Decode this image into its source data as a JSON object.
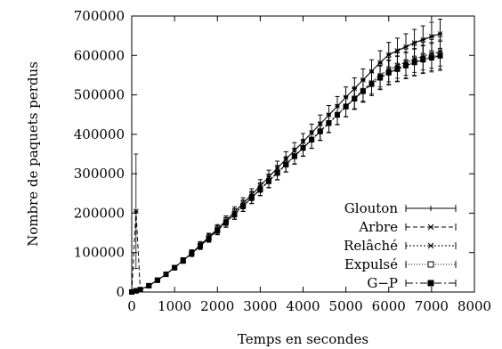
{
  "chart_data": {
    "type": "line",
    "xlabel": "Temps en secondes",
    "ylabel": "Nombre de paquets perdus",
    "xlim": [
      0,
      8000
    ],
    "ylim": [
      0,
      700000
    ],
    "xticks": [
      0,
      1000,
      2000,
      3000,
      4000,
      5000,
      6000,
      7000,
      8000
    ],
    "yticks": [
      0,
      100000,
      200000,
      300000,
      400000,
      500000,
      600000,
      700000
    ],
    "xtick_labels": [
      "0",
      "1000",
      "2000",
      "3000",
      "4000",
      "5000",
      "6000",
      "7000",
      "8000"
    ],
    "ytick_labels": [
      "0",
      "100000",
      "200000",
      "300000",
      "400000",
      "500000",
      "600000",
      "700000"
    ],
    "grid": false,
    "legend_position": "bottom-right",
    "series": [
      {
        "name": "Glouton",
        "marker": "plus",
        "dash": "none",
        "x": [
          0,
          100,
          200,
          400,
          600,
          800,
          1000,
          1200,
          1400,
          1600,
          1800,
          2000,
          2200,
          2400,
          2600,
          2800,
          3000,
          3200,
          3400,
          3600,
          3800,
          4000,
          4200,
          4400,
          4600,
          4800,
          5000,
          5200,
          5400,
          5600,
          5800,
          6000,
          6200,
          6400,
          6600,
          6800,
          7000,
          7200
        ],
        "y": [
          0,
          3000,
          6000,
          16000,
          30000,
          45000,
          62000,
          80000,
          99000,
          119000,
          139000,
          160000,
          181000,
          203000,
          225000,
          247000,
          269000,
          292000,
          314000,
          337000,
          359000,
          381000,
          404000,
          426000,
          449000,
          471000,
          494000,
          516000,
          538000,
          560000,
          582000,
          602000,
          612000,
          622000,
          632000,
          640000,
          648000,
          655000
        ],
        "err": [
          0,
          1000,
          2000,
          3000,
          4000,
          5000,
          6000,
          7000,
          8000,
          9000,
          10000,
          11000,
          12000,
          13000,
          14000,
          15000,
          16000,
          17000,
          18000,
          19000,
          20000,
          21000,
          22000,
          23000,
          24000,
          25000,
          26000,
          27000,
          28000,
          29000,
          30000,
          31000,
          32000,
          33000,
          34000,
          35000,
          36000,
          37000
        ]
      },
      {
        "name": "Arbre",
        "marker": "star",
        "dash": "5,3",
        "x": [
          0,
          100,
          200,
          400,
          600,
          800,
          1000,
          1200,
          1400,
          1600,
          1800,
          2000,
          2200,
          2400,
          2600,
          2800,
          3000,
          3200,
          3400,
          3600,
          3800,
          4000,
          4200,
          4400,
          4600,
          4800,
          5000,
          5200,
          5400,
          5600,
          5800,
          6000,
          6200,
          6400,
          6600,
          6800,
          7000,
          7200
        ],
        "y": [
          0,
          205000,
          6000,
          16000,
          30000,
          45000,
          62000,
          80000,
          99000,
          119000,
          139000,
          160000,
          181000,
          203000,
          225000,
          247000,
          269000,
          292000,
          314000,
          337000,
          359000,
          381000,
          404000,
          426000,
          449000,
          471000,
          494000,
          516000,
          538000,
          560000,
          582000,
          602000,
          612000,
          622000,
          632000,
          640000,
          648000,
          655000
        ],
        "err": [
          0,
          145000,
          2000,
          3000,
          4000,
          5000,
          6000,
          7000,
          8000,
          9000,
          10000,
          11000,
          12000,
          13000,
          14000,
          15000,
          16000,
          17000,
          18000,
          19000,
          20000,
          21000,
          22000,
          23000,
          24000,
          25000,
          26000,
          27000,
          28000,
          29000,
          30000,
          31000,
          32000,
          33000,
          34000,
          35000,
          36000,
          37000
        ]
      },
      {
        "name": "Relâché",
        "marker": "star",
        "dash": "2,2",
        "x": [
          0,
          100,
          200,
          400,
          600,
          800,
          1000,
          1200,
          1400,
          1600,
          1800,
          2000,
          2200,
          2400,
          2600,
          2800,
          3000,
          3200,
          3400,
          3600,
          3800,
          4000,
          4200,
          4400,
          4600,
          4800,
          5000,
          5200,
          5400,
          5600,
          5800,
          6000,
          6200,
          6400,
          6600,
          6800,
          7000,
          7200
        ],
        "y": [
          0,
          3000,
          6000,
          16000,
          30000,
          45000,
          62000,
          80000,
          98000,
          117000,
          137000,
          157000,
          177000,
          198000,
          219000,
          240000,
          261000,
          282000,
          303000,
          324000,
          345000,
          366000,
          387000,
          408000,
          429000,
          450000,
          471000,
          492000,
          512000,
          532000,
          550000,
          564000,
          574000,
          583000,
          591000,
          598000,
          604000,
          610000
        ],
        "err": [
          0,
          1000,
          2000,
          3000,
          4000,
          5000,
          6000,
          7000,
          8000,
          9000,
          10000,
          11000,
          12000,
          13000,
          14000,
          15000,
          16000,
          17000,
          18000,
          19000,
          20000,
          21000,
          22000,
          23000,
          24000,
          25000,
          26000,
          27000,
          28000,
          29000,
          30000,
          31000,
          32000,
          33000,
          34000,
          35000,
          36000,
          37000
        ]
      },
      {
        "name": "Expulsé",
        "marker": "square-open",
        "dash": "1,2",
        "x": [
          0,
          100,
          200,
          400,
          600,
          800,
          1000,
          1200,
          1400,
          1600,
          1800,
          2000,
          2200,
          2400,
          2600,
          2800,
          3000,
          3200,
          3400,
          3600,
          3800,
          4000,
          4200,
          4400,
          4600,
          4800,
          5000,
          5200,
          5400,
          5600,
          5800,
          6000,
          6200,
          6400,
          6600,
          6800,
          7000,
          7200
        ],
        "y": [
          0,
          3000,
          6000,
          16000,
          30000,
          45000,
          62000,
          80000,
          98000,
          117000,
          137000,
          157000,
          177000,
          198000,
          219000,
          240000,
          261000,
          282000,
          303000,
          324000,
          345000,
          366000,
          387000,
          408000,
          429000,
          450000,
          471000,
          491000,
          510000,
          528000,
          545000,
          558000,
          567000,
          576000,
          584000,
          591000,
          597000,
          602000
        ],
        "err": [
          0,
          1000,
          2000,
          3000,
          4000,
          5000,
          6000,
          7000,
          8000,
          9000,
          10000,
          11000,
          12000,
          13000,
          14000,
          15000,
          16000,
          17000,
          18000,
          19000,
          20000,
          21000,
          22000,
          23000,
          24000,
          25000,
          26000,
          27000,
          28000,
          29000,
          30000,
          31000,
          32000,
          33000,
          34000,
          35000,
          36000,
          37000
        ]
      },
      {
        "name": "G−P",
        "marker": "square-filled",
        "dash": "8,3,2,3",
        "x": [
          0,
          100,
          200,
          400,
          600,
          800,
          1000,
          1200,
          1400,
          1600,
          1800,
          2000,
          2200,
          2400,
          2600,
          2800,
          3000,
          3200,
          3400,
          3600,
          3800,
          4000,
          4200,
          4400,
          4600,
          4800,
          5000,
          5200,
          5400,
          5600,
          5800,
          6000,
          6200,
          6400,
          6600,
          6800,
          7000,
          7200
        ],
        "y": [
          0,
          3000,
          6000,
          16000,
          30000,
          45000,
          62000,
          80000,
          98000,
          117000,
          136000,
          156000,
          176000,
          197000,
          218000,
          239000,
          260000,
          281000,
          302000,
          323000,
          344000,
          365000,
          386000,
          407000,
          428000,
          449000,
          470000,
          490000,
          509000,
          527000,
          543000,
          556000,
          565000,
          574000,
          582000,
          589000,
          594000,
          599000
        ],
        "err": [
          0,
          1000,
          2000,
          3000,
          4000,
          5000,
          6000,
          7000,
          8000,
          9000,
          10000,
          11000,
          12000,
          13000,
          14000,
          15000,
          16000,
          17000,
          18000,
          19000,
          20000,
          21000,
          22000,
          23000,
          24000,
          25000,
          26000,
          27000,
          28000,
          29000,
          30000,
          31000,
          32000,
          33000,
          34000,
          35000,
          36000,
          37000
        ]
      }
    ]
  }
}
